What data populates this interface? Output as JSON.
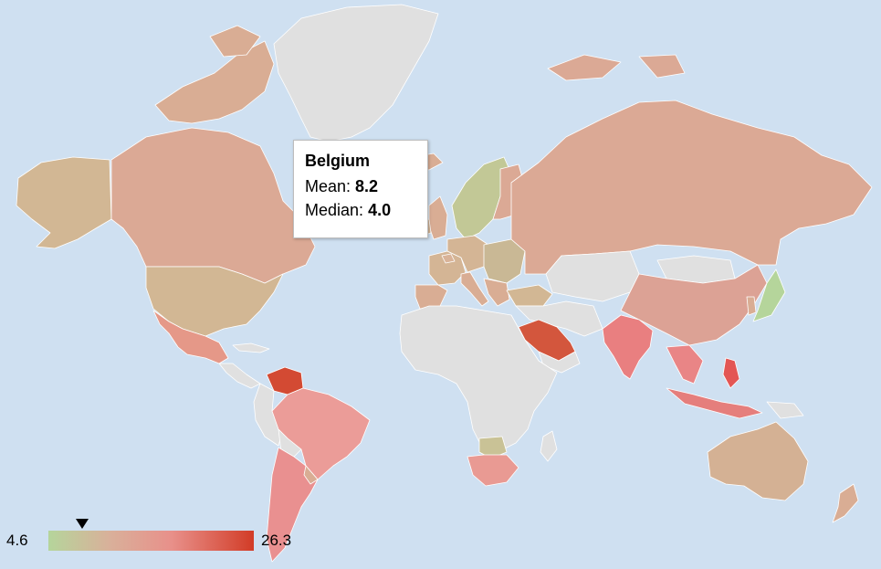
{
  "colors": {
    "ocean": "#cfe0f1",
    "no_data": "#e0e0e0",
    "scale_low": "#b5d59b",
    "scale_mid": "#d9ad94",
    "scale_high": "#d23c27"
  },
  "tooltip": {
    "country": "Belgium",
    "mean_label": "Mean:",
    "mean_value": "8.2",
    "median_label": "Median:",
    "median_value": "4.0"
  },
  "legend": {
    "min_label": "4.6",
    "max_label": "26.3",
    "min": 4.6,
    "max": 26.3,
    "marker_value": 8.2
  },
  "chart_data": {
    "type": "choropleth",
    "scale": {
      "min": 4.6,
      "max": 26.3
    },
    "highlight": {
      "country": "Belgium",
      "mean": 8.2,
      "median": 4.0
    }
  }
}
